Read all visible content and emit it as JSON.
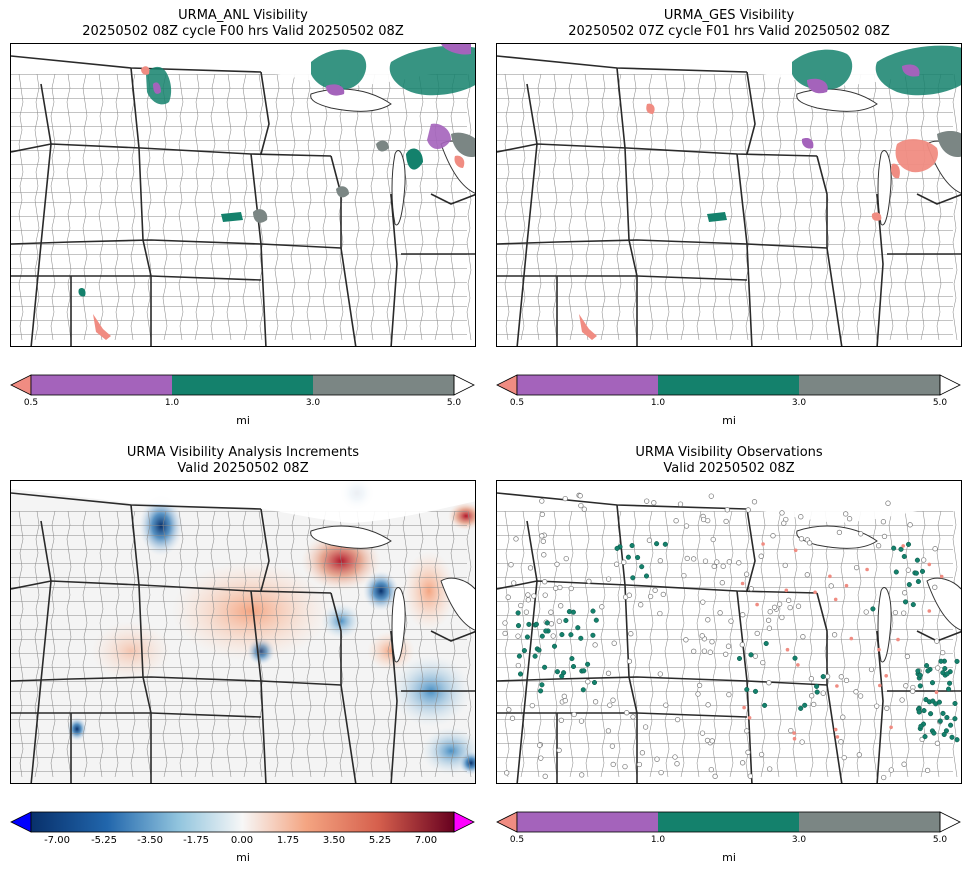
{
  "panels": [
    {
      "title_line1": "URMA_ANL Visibility",
      "title_line2": "20250502 08Z cycle F00 hrs Valid 20250502 08Z",
      "colorbar": {
        "ticks": [
          "0.5",
          "1.0",
          "3.0",
          "5.0"
        ],
        "unit": "mi",
        "colors": {
          "lt_0_5": "#f08c82",
          "0_5_1": "#a463bb",
          "1_3": "#14816c",
          "3_5": "#7b8684",
          "gt_5": "#ffffff"
        }
      }
    },
    {
      "title_line1": "URMA_GES Visibility",
      "title_line2": "20250502 07Z cycle F01 hrs Valid 20250502 08Z",
      "colorbar": {
        "ticks": [
          "0.5",
          "1.0",
          "3.0",
          "5.0"
        ],
        "unit": "mi"
      }
    },
    {
      "title_line1": "URMA Visibility Analysis Increments",
      "title_line2": "Valid 20250502 08Z",
      "colorbar": {
        "ticks": [
          "-7.00",
          "-5.25",
          "-3.50",
          "-1.75",
          "0.00",
          "1.75",
          "3.50",
          "5.25",
          "7.00"
        ],
        "unit": "mi",
        "colors": {
          "under": "#0000ff",
          "over": "#ff00ff",
          "min": "#08306b",
          "mid": "#f7f7f7",
          "max": "#67001f"
        }
      }
    },
    {
      "title_line1": "URMA Visibility Observations",
      "title_line2": "Valid 20250502 08Z",
      "colorbar": {
        "ticks": [
          "0.5",
          "1.0",
          "3.0",
          "5.0"
        ],
        "unit": "mi"
      }
    }
  ]
}
